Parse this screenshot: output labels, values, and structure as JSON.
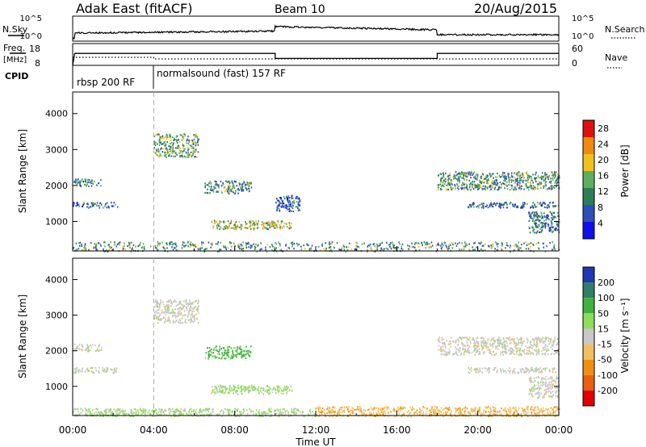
{
  "header": {
    "station_title": "Adak East (fitACF)",
    "beam": "Beam 10",
    "date": "20/Aug/2015"
  },
  "params": {
    "nsky_label": "N.Sky",
    "nsearch_label": "N.Search",
    "nsky_ticks": [
      "10^5",
      "10^0"
    ],
    "nsearch_ticks": [
      "10^5",
      "10^0"
    ],
    "freq_label": "Freq.",
    "freq_unit": "[MHz]",
    "freq_ticks": [
      "18",
      "8"
    ],
    "nave_label": "Nave",
    "nave_ticks": [
      "60",
      "0"
    ],
    "cpid_label": "CPID",
    "cpid_segments": [
      {
        "text": "rbsp 200 RF",
        "start_hour": 0,
        "end_hour": 4
      },
      {
        "text": "normalsound (fast) 157 RF",
        "start_hour": 4,
        "end_hour": 24
      }
    ]
  },
  "axes": {
    "x_ticks": [
      "00:00",
      "04:00",
      "08:00",
      "12:00",
      "16:00",
      "20:00",
      "00:00"
    ],
    "x_label": "Time UT",
    "y_ticks": [
      "1000",
      "2000",
      "3000",
      "4000"
    ],
    "y_label": "Slant Range [km]"
  },
  "power_scale": {
    "label": "Power [dB]",
    "ticks": [
      "4",
      "8",
      "12",
      "16",
      "20",
      "24",
      "28"
    ],
    "colors": [
      "#1010e6",
      "#2f4fb8",
      "#2e7d5a",
      "#5fae5f",
      "#f0c020",
      "#f08a10",
      "#e01010"
    ]
  },
  "velocity_scale": {
    "label": "Velocity [m s⁻¹]",
    "ticks": [
      "200",
      "100",
      "50",
      "15",
      "-15",
      "-50",
      "-100",
      "-200"
    ],
    "colors": [
      "#2038b0",
      "#2f7f6a",
      "#40b040",
      "#8fdc5a",
      "#c8c8c8",
      "#f0c060",
      "#f09010",
      "#e86010",
      "#e00000"
    ]
  },
  "chart_data": [
    {
      "type": "heatmap",
      "title": "Power",
      "xlabel": "Time UT",
      "ylabel": "Slant Range [km]",
      "xlim_hours": [
        0,
        24
      ],
      "ylim_km": [
        180,
        4600
      ],
      "colorbar_label": "Power [dB]",
      "colorbar_range": [
        0,
        30
      ],
      "echo_regions": [
        {
          "t": [
            0.0,
            1.4
          ],
          "r": [
            2000,
            2200
          ],
          "value": 10
        },
        {
          "t": [
            0.0,
            2.2
          ],
          "r": [
            1400,
            1550
          ],
          "value": 8
        },
        {
          "t": [
            4.0,
            6.2
          ],
          "r": [
            2800,
            3450
          ],
          "value": 14
        },
        {
          "t": [
            6.5,
            8.8
          ],
          "r": [
            1800,
            2150
          ],
          "value": 12
        },
        {
          "t": [
            6.8,
            10.8
          ],
          "r": [
            800,
            1050
          ],
          "value": 18
        },
        {
          "t": [
            10.0,
            11.2
          ],
          "r": [
            1300,
            1750
          ],
          "value": 8
        },
        {
          "t": [
            0.0,
            24.0
          ],
          "r": [
            180,
            450
          ],
          "value": 12
        },
        {
          "t": [
            18.0,
            24.0
          ],
          "r": [
            1900,
            2400
          ],
          "value": 12
        },
        {
          "t": [
            19.5,
            24.0
          ],
          "r": [
            1400,
            1550
          ],
          "value": 8
        },
        {
          "t": [
            22.5,
            24.0
          ],
          "r": [
            700,
            1300
          ],
          "value": 10
        }
      ]
    },
    {
      "type": "heatmap",
      "title": "Velocity",
      "xlabel": "Time UT",
      "ylabel": "Slant Range [km]",
      "xlim_hours": [
        0,
        24
      ],
      "ylim_km": [
        180,
        4600
      ],
      "colorbar_label": "Velocity [m s⁻¹]",
      "colorbar_range": [
        -200,
        200
      ],
      "echo_regions": [
        {
          "t": [
            0.0,
            1.4
          ],
          "r": [
            2000,
            2200
          ],
          "value": 0
        },
        {
          "t": [
            0.0,
            2.2
          ],
          "r": [
            1400,
            1550
          ],
          "value": 0
        },
        {
          "t": [
            4.0,
            6.2
          ],
          "r": [
            2800,
            3450
          ],
          "value": 0
        },
        {
          "t": [
            6.5,
            8.8
          ],
          "r": [
            1800,
            2150
          ],
          "value": 60
        },
        {
          "t": [
            6.8,
            10.8
          ],
          "r": [
            800,
            1050
          ],
          "value": 25
        },
        {
          "t": [
            0.0,
            12.0
          ],
          "r": [
            180,
            400
          ],
          "value": 20
        },
        {
          "t": [
            12.0,
            24.0
          ],
          "r": [
            180,
            450
          ],
          "value": -40
        },
        {
          "t": [
            18.0,
            24.0
          ],
          "r": [
            1900,
            2400
          ],
          "value": 0
        },
        {
          "t": [
            19.5,
            24.0
          ],
          "r": [
            1400,
            1550
          ],
          "value": 0
        },
        {
          "t": [
            22.5,
            24.0
          ],
          "r": [
            700,
            1300
          ],
          "value": 0
        }
      ]
    },
    {
      "type": "line",
      "title": "Freq.",
      "ylabel": "[MHz]",
      "ylim": [
        8,
        18
      ],
      "series": [
        {
          "name": "Freq.",
          "x_hours": [
            0,
            0.1,
            10,
            10,
            18,
            18,
            24
          ],
          "values": [
            8,
            13.5,
            13.5,
            11.2,
            11.2,
            13.5,
            13.5
          ]
        }
      ]
    }
  ]
}
